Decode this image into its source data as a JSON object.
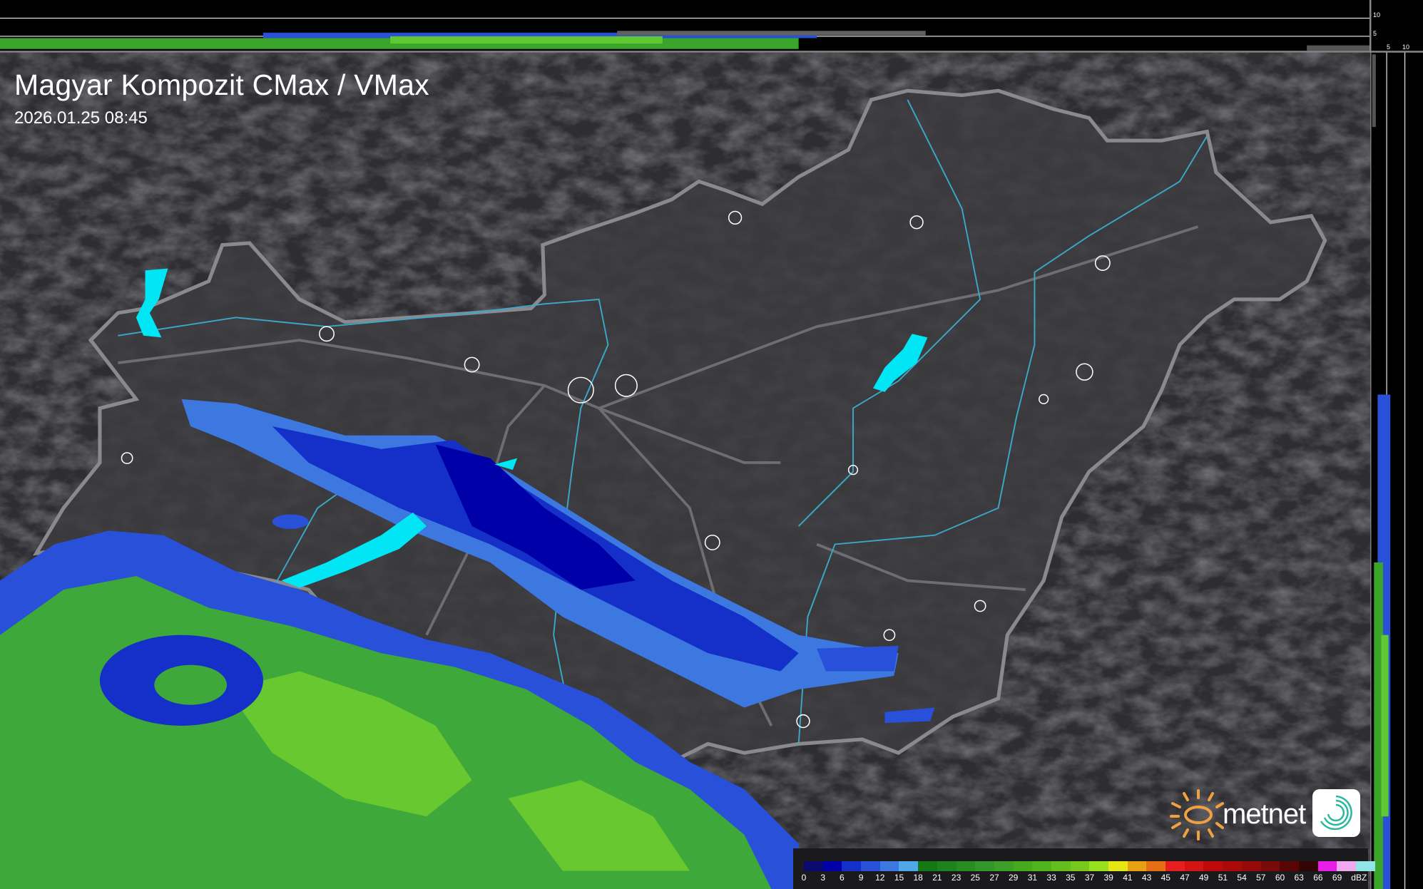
{
  "header": {
    "title": "Magyar Kompozit CMax / VMax",
    "timestamp": "2026.01.25 08:45"
  },
  "profile_axes": {
    "top_strip_ticks": [
      "10",
      "5"
    ],
    "side_strip_ticks": [
      "5",
      "10"
    ]
  },
  "legend": {
    "unit": "dBZ",
    "labels": [
      "0",
      "3",
      "6",
      "9",
      "12",
      "15",
      "18",
      "21",
      "23",
      "25",
      "27",
      "29",
      "31",
      "33",
      "35",
      "37",
      "39",
      "41",
      "43",
      "45",
      "47",
      "49",
      "51",
      "54",
      "57",
      "60",
      "63",
      "66",
      "69"
    ],
    "colors": [
      "#0a0a6e",
      "#0000a8",
      "#1430c8",
      "#2850d8",
      "#3c78e0",
      "#50a8e8",
      "#147814",
      "#1e821e",
      "#288c1e",
      "#329628",
      "#3ca028",
      "#46aa1e",
      "#50b41e",
      "#64be1e",
      "#78c81e",
      "#96e01e",
      "#e6e614",
      "#e6a014",
      "#e66e14",
      "#e61e1e",
      "#d21414",
      "#be0a0a",
      "#aa0a0a",
      "#960a0a",
      "#780a0a",
      "#5a0505",
      "#320505",
      "#e61ee6",
      "#f0a8f0",
      "#90e6e6"
    ]
  },
  "branding": {
    "logo_text": "metnet",
    "accent_color": "#f0a040"
  },
  "colors": {
    "background": "#2e2e32",
    "country_fill": "#3c3c40",
    "border": "#8a8a8e",
    "rivers": "#3aa8c8",
    "lakes": "#00e6f5"
  }
}
